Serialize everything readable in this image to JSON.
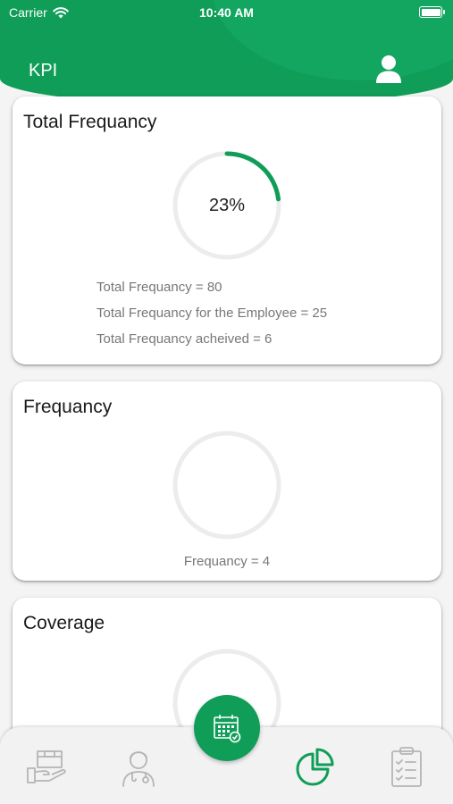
{
  "status_bar": {
    "carrier": "Carrier",
    "time": "10:40 AM"
  },
  "header": {
    "title": "KPI",
    "profile_icon": "user-icon"
  },
  "cards": {
    "total_frequency": {
      "title": "Total Frequancy",
      "progress_label": "23%",
      "progress_fraction": 0.23,
      "lines": [
        "Total Frequancy = 80",
        "Total Frequancy for the Employee = 25",
        "Total Frequancy acheived = 6"
      ]
    },
    "frequency": {
      "title": "Frequancy",
      "progress_fraction": 0,
      "line": "Frequancy = 4"
    },
    "coverage": {
      "title": "Coverage",
      "progress_fraction": 0
    }
  },
  "tabbar": {
    "tabs": [
      {
        "icon": "hand-box-icon",
        "active": false
      },
      {
        "icon": "doctor-icon",
        "active": false
      },
      {
        "icon": "calendar-icon",
        "active": false,
        "center": true
      },
      {
        "icon": "pie-chart-icon",
        "active": true
      },
      {
        "icon": "clipboard-checklist-icon",
        "active": false
      }
    ]
  },
  "colors": {
    "primary": "#0f9d58",
    "ring_track": "#ececec",
    "muted_text": "#777777",
    "inactive_icon": "#b5b5b5"
  }
}
